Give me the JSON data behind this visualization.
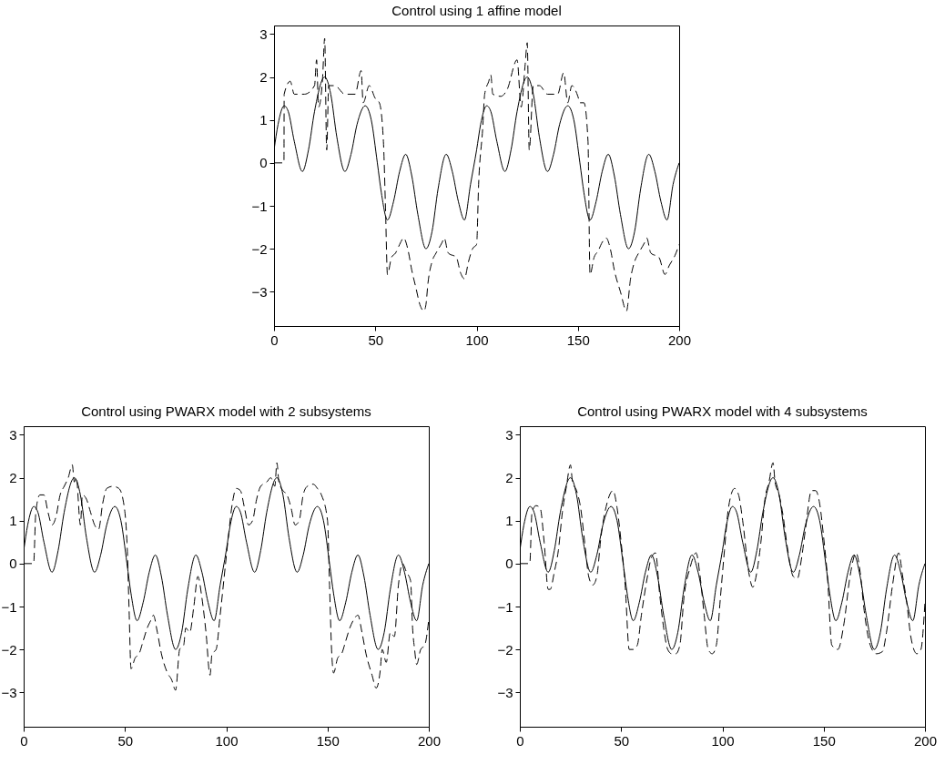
{
  "chart_data": [
    {
      "type": "line",
      "title": "Control using 1 affine model",
      "xlim": [
        0,
        200
      ],
      "ylim": [
        -3.8,
        3.2
      ],
      "xticks": [
        0,
        50,
        100,
        150,
        200
      ],
      "yticks": [
        -3,
        -2,
        -1,
        0,
        1,
        2,
        3
      ],
      "grid": false,
      "series": [
        {
          "color": "#000000",
          "line_style": "solid",
          "x": [
            0,
            2,
            5,
            7,
            10,
            14,
            17,
            20,
            25,
            28,
            31,
            35,
            38,
            41,
            45,
            48,
            51,
            53,
            56,
            59,
            62,
            65,
            68,
            71,
            75,
            78,
            81,
            85,
            88,
            91,
            94,
            97,
            100,
            102,
            105,
            107,
            110,
            114,
            117,
            120,
            125,
            128,
            131,
            135,
            138,
            141,
            145,
            148,
            151,
            153,
            156,
            159,
            162,
            165,
            168,
            171,
            175,
            178,
            181,
            185,
            188,
            191,
            194,
            197,
            200
          ],
          "values": [
            0.3,
            0.9,
            1.33,
            1.2,
            0.5,
            -0.2,
            0.3,
            1.2,
            2.0,
            1.6,
            0.6,
            -0.2,
            0.2,
            0.9,
            1.33,
            1.0,
            0.0,
            -0.7,
            -1.33,
            -0.9,
            -0.2,
            0.2,
            -0.3,
            -1.2,
            -2.0,
            -1.6,
            -0.6,
            0.2,
            -0.2,
            -0.9,
            -1.33,
            -0.5,
            0.3,
            0.9,
            1.33,
            1.2,
            0.5,
            -0.2,
            0.3,
            1.2,
            2.0,
            1.6,
            0.6,
            -0.2,
            0.2,
            0.9,
            1.33,
            1.0,
            0.0,
            -0.7,
            -1.33,
            -0.9,
            -0.2,
            0.2,
            -0.3,
            -1.2,
            -2.0,
            -1.6,
            -0.6,
            0.2,
            -0.2,
            -0.9,
            -1.33,
            -0.5,
            0.0
          ]
        },
        {
          "color": "#000000",
          "line_style": "dashed",
          "x": [
            0,
            4.9,
            5,
            8,
            10,
            15,
            20,
            21,
            22,
            24,
            25,
            26,
            27,
            30,
            35,
            40,
            43,
            44,
            47,
            50,
            52,
            54,
            55,
            56,
            58,
            60,
            62,
            64,
            66,
            68,
            70,
            72,
            74,
            75,
            76,
            78,
            80,
            83,
            84,
            86,
            90,
            92,
            94,
            96,
            98,
            100,
            101,
            103,
            104,
            106,
            107,
            108,
            112,
            115,
            120,
            122,
            124,
            125,
            126,
            128,
            131,
            135,
            140,
            143,
            145,
            147,
            150,
            151,
            153,
            155,
            156,
            158,
            160,
            162,
            164,
            166,
            168,
            171,
            174,
            176,
            178,
            180,
            183,
            184,
            186,
            190,
            193,
            195,
            198,
            200
          ],
          "values": [
            0,
            0,
            1.6,
            1.9,
            1.6,
            1.6,
            1.8,
            2.4,
            1.3,
            2.0,
            2.9,
            0.3,
            1.8,
            1.8,
            1.6,
            1.6,
            2.15,
            1.4,
            1.8,
            1.5,
            1.4,
            0.5,
            -1.0,
            -2.6,
            -2.2,
            -2.1,
            -1.9,
            -1.75,
            -2.0,
            -2.5,
            -2.9,
            -3.3,
            -3.45,
            -3.3,
            -2.8,
            -2.3,
            -2.1,
            -1.85,
            -1.75,
            -2.1,
            -2.2,
            -2.55,
            -2.7,
            -2.3,
            -2.0,
            -1.9,
            -0.5,
            0.8,
            1.6,
            1.9,
            2.05,
            1.6,
            1.55,
            1.7,
            2.4,
            1.3,
            2.3,
            2.8,
            0.3,
            1.8,
            1.8,
            1.6,
            1.6,
            2.1,
            1.4,
            1.8,
            1.55,
            1.4,
            1.4,
            0.5,
            -2.6,
            -2.2,
            -2.05,
            -1.85,
            -1.75,
            -2.0,
            -2.5,
            -3.0,
            -3.45,
            -2.7,
            -2.3,
            -2.1,
            -1.85,
            -1.75,
            -2.1,
            -2.2,
            -2.6,
            -2.4,
            -2.15,
            -1.9
          ]
        }
      ]
    },
    {
      "type": "line",
      "title": "Control using PWARX model with 2 subsystems",
      "xlim": [
        0,
        200
      ],
      "ylim": [
        -3.8,
        3.2
      ],
      "xticks": [
        0,
        50,
        100,
        150,
        200
      ],
      "yticks": [
        -3,
        -2,
        -1,
        0,
        1,
        2,
        3
      ],
      "grid": false,
      "series": [
        {
          "color": "#000000",
          "line_style": "solid",
          "x": [
            0,
            2,
            5,
            7,
            10,
            14,
            17,
            20,
            25,
            28,
            31,
            35,
            38,
            41,
            45,
            48,
            51,
            53,
            56,
            59,
            62,
            65,
            68,
            71,
            75,
            78,
            81,
            85,
            88,
            91,
            94,
            97,
            100,
            102,
            105,
            107,
            110,
            114,
            117,
            120,
            125,
            128,
            131,
            135,
            138,
            141,
            145,
            148,
            151,
            153,
            156,
            159,
            162,
            165,
            168,
            171,
            175,
            178,
            181,
            185,
            188,
            191,
            194,
            197,
            200
          ],
          "values": [
            0.3,
            0.9,
            1.33,
            1.2,
            0.5,
            -0.2,
            0.3,
            1.2,
            2.0,
            1.6,
            0.6,
            -0.2,
            0.2,
            0.9,
            1.33,
            1.0,
            0.0,
            -0.7,
            -1.33,
            -0.9,
            -0.2,
            0.2,
            -0.3,
            -1.2,
            -2.0,
            -1.6,
            -0.6,
            0.2,
            -0.2,
            -0.9,
            -1.33,
            -0.5,
            0.3,
            0.9,
            1.33,
            1.2,
            0.5,
            -0.2,
            0.3,
            1.2,
            2.0,
            1.6,
            0.6,
            -0.2,
            0.2,
            0.9,
            1.33,
            1.0,
            0.0,
            -0.7,
            -1.33,
            -0.9,
            -0.2,
            0.2,
            -0.3,
            -1.2,
            -2.0,
            -1.6,
            -0.6,
            0.2,
            -0.2,
            -0.9,
            -1.33,
            -0.5,
            0.0
          ]
        },
        {
          "color": "#000000",
          "line_style": "dashed",
          "x": [
            0,
            4.9,
            6,
            8,
            10,
            12,
            14,
            16,
            18,
            20,
            22,
            24,
            25,
            26,
            28,
            29,
            31,
            33,
            35,
            37,
            39,
            41,
            44,
            47,
            49,
            51,
            52,
            53,
            55,
            57,
            59,
            61,
            63,
            64,
            66,
            68,
            71,
            73,
            75,
            77,
            79,
            80,
            82,
            84,
            86,
            88,
            90,
            92,
            93,
            95,
            97,
            99,
            101,
            103,
            105,
            107,
            109,
            111,
            113,
            115,
            117,
            120,
            122,
            124,
            125,
            126,
            128,
            130,
            132,
            134,
            136,
            138,
            140,
            143,
            145,
            147,
            150,
            151,
            152,
            153,
            155,
            157,
            159,
            161,
            163,
            165,
            167,
            169,
            172,
            174,
            176,
            177,
            179,
            181,
            183,
            185,
            187,
            189,
            191,
            192,
            193,
            194,
            196,
            198,
            200
          ],
          "values": [
            0,
            0,
            1.2,
            1.6,
            1.6,
            1.2,
            0.9,
            1.1,
            1.6,
            1.8,
            2.0,
            2.3,
            1.9,
            2.0,
            0.9,
            1.6,
            1.5,
            1.2,
            0.9,
            0.8,
            1.4,
            1.75,
            1.8,
            1.75,
            1.5,
            0.5,
            -1.0,
            -2.45,
            -2.2,
            -2.1,
            -1.8,
            -1.5,
            -1.3,
            -1.2,
            -1.6,
            -2.1,
            -2.55,
            -2.7,
            -2.95,
            -2.0,
            -1.9,
            -1.5,
            -1.6,
            -1.0,
            -0.3,
            -0.8,
            -1.6,
            -2.6,
            -2.1,
            -2.0,
            -1.2,
            -0.3,
            0.6,
            1.4,
            1.75,
            1.7,
            1.3,
            0.9,
            1.0,
            1.5,
            1.8,
            1.9,
            2.0,
            1.8,
            2.35,
            1.9,
            1.7,
            1.6,
            1.3,
            0.9,
            1.0,
            1.6,
            1.8,
            1.85,
            1.75,
            1.6,
            1.0,
            -0.5,
            -2.0,
            -2.55,
            -2.2,
            -2.1,
            -1.8,
            -1.5,
            -1.3,
            -1.2,
            -1.6,
            -2.1,
            -2.6,
            -2.9,
            -2.5,
            -2.0,
            -2.3,
            -1.6,
            -1.7,
            -0.5,
            0.0,
            -0.2,
            -0.4,
            -1.5,
            -2.0,
            -2.35,
            -2.0,
            -1.9,
            -1.3
          ]
        }
      ]
    },
    {
      "type": "line",
      "title": "Control using PWARX model with 4 subsystems",
      "xlim": [
        0,
        200
      ],
      "ylim": [
        -3.8,
        3.2
      ],
      "xticks": [
        0,
        50,
        100,
        150,
        200
      ],
      "yticks": [
        -3,
        -2,
        -1,
        0,
        1,
        2,
        3
      ],
      "grid": false,
      "series": [
        {
          "color": "#000000",
          "line_style": "solid",
          "x": [
            0,
            2,
            5,
            7,
            10,
            14,
            17,
            20,
            25,
            28,
            31,
            35,
            38,
            41,
            45,
            48,
            51,
            53,
            56,
            59,
            62,
            65,
            68,
            71,
            75,
            78,
            81,
            85,
            88,
            91,
            94,
            97,
            100,
            102,
            105,
            107,
            110,
            114,
            117,
            120,
            125,
            128,
            131,
            135,
            138,
            141,
            145,
            148,
            151,
            153,
            156,
            159,
            162,
            165,
            168,
            171,
            175,
            178,
            181,
            185,
            188,
            191,
            194,
            197,
            200
          ],
          "values": [
            0.3,
            0.9,
            1.33,
            1.2,
            0.5,
            -0.2,
            0.3,
            1.2,
            2.0,
            1.6,
            0.6,
            -0.2,
            0.2,
            0.9,
            1.33,
            1.0,
            0.0,
            -0.7,
            -1.33,
            -0.9,
            -0.2,
            0.2,
            -0.3,
            -1.2,
            -2.0,
            -1.6,
            -0.6,
            0.2,
            -0.2,
            -0.9,
            -1.33,
            -0.5,
            0.3,
            0.9,
            1.33,
            1.2,
            0.5,
            -0.2,
            0.3,
            1.2,
            2.0,
            1.6,
            0.6,
            -0.2,
            0.2,
            0.9,
            1.33,
            1.0,
            0.0,
            -0.7,
            -1.33,
            -0.9,
            -0.2,
            0.2,
            -0.3,
            -1.2,
            -2.0,
            -1.6,
            -0.6,
            0.2,
            -0.2,
            -0.9,
            -1.33,
            -0.5,
            0.0
          ]
        },
        {
          "color": "#000000",
          "line_style": "dashed",
          "x": [
            0,
            4.9,
            6,
            8,
            10,
            12,
            14,
            15,
            17,
            19,
            21,
            23,
            25,
            26,
            28,
            30,
            32,
            34,
            36,
            38,
            40,
            43,
            46,
            48,
            50,
            52,
            54,
            56,
            58,
            60,
            63,
            65,
            67,
            69,
            71,
            73,
            75,
            77,
            79,
            81,
            84,
            87,
            89,
            91,
            93,
            95,
            97,
            99,
            101,
            103,
            106,
            108,
            110,
            113,
            115,
            117,
            119,
            121,
            123,
            125,
            126,
            128,
            130,
            132,
            135,
            137,
            139,
            141,
            144,
            146,
            148,
            150,
            152,
            154,
            157,
            160,
            163,
            166,
            168,
            170,
            173,
            176,
            179,
            181,
            184,
            187,
            189,
            191,
            193,
            196,
            198,
            200
          ],
          "values": [
            0,
            0,
            1.2,
            1.35,
            1.3,
            0.5,
            -0.6,
            -0.6,
            -0.2,
            0.3,
            1.2,
            1.8,
            2.3,
            1.9,
            1.7,
            1.3,
            0.5,
            -0.3,
            -0.5,
            -0.3,
            0.6,
            1.4,
            1.7,
            1.3,
            0.5,
            -0.5,
            -2.0,
            -2.0,
            -1.9,
            -1.2,
            -0.3,
            0.15,
            0.25,
            -0.7,
            -1.5,
            -2.0,
            -2.1,
            -2.1,
            -1.9,
            -0.8,
            -0.1,
            0.25,
            -0.3,
            -1.2,
            -2.0,
            -2.1,
            -1.9,
            -0.8,
            0.3,
            1.3,
            1.75,
            1.6,
            1.0,
            -0.2,
            -0.55,
            -0.2,
            0.5,
            1.5,
            1.9,
            2.35,
            1.9,
            1.6,
            1.1,
            0.4,
            -0.3,
            -0.35,
            0.1,
            0.8,
            1.7,
            1.7,
            1.4,
            0.6,
            -0.4,
            -1.9,
            -2.0,
            -1.4,
            -0.3,
            0.25,
            -0.2,
            -1.1,
            -1.9,
            -2.1,
            -2.05,
            -1.6,
            -0.5,
            0.25,
            -0.3,
            -0.9,
            -1.7,
            -2.1,
            -2.0,
            -0.9
          ]
        }
      ]
    }
  ]
}
